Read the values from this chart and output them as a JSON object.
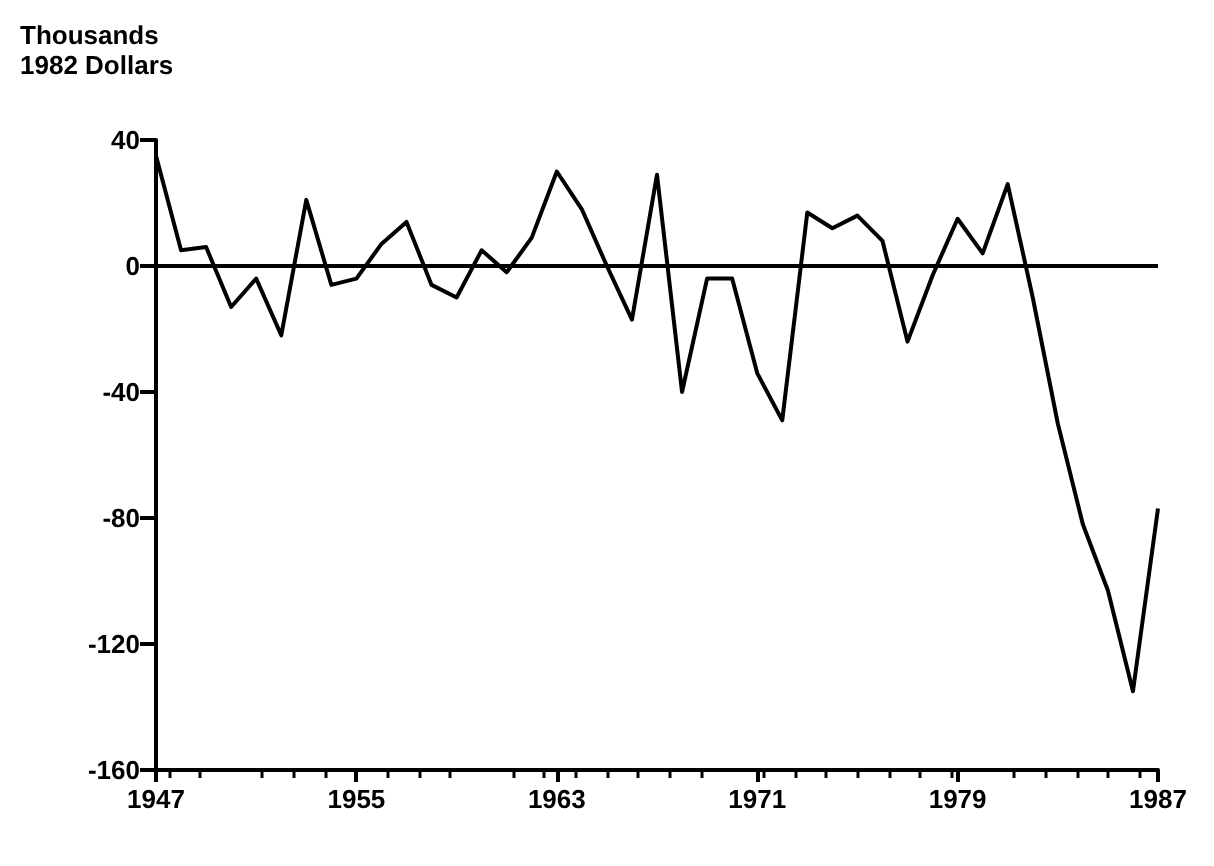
{
  "chart_data": {
    "type": "line",
    "ylabel": "Thousands\n1982 Dollars",
    "x": [
      1947,
      1948,
      1949,
      1950,
      1951,
      1952,
      1953,
      1954,
      1955,
      1956,
      1957,
      1958,
      1959,
      1960,
      1961,
      1962,
      1963,
      1964,
      1965,
      1966,
      1967,
      1968,
      1969,
      1970,
      1971,
      1972,
      1973,
      1974,
      1975,
      1976,
      1977,
      1978,
      1979,
      1980,
      1981,
      1982,
      1983,
      1984,
      1985,
      1986,
      1987
    ],
    "series": [
      {
        "color": "#000000",
        "values": [
          35,
          5,
          6,
          -13,
          -4,
          -22,
          21,
          -6,
          -4,
          7,
          14,
          -6,
          -10,
          5,
          -2,
          9,
          30,
          18,
          0,
          -17,
          29,
          -40,
          -4,
          -4,
          -34,
          -49,
          17,
          12,
          16,
          8,
          -24,
          -3,
          15,
          4,
          26,
          -10,
          -50,
          -82,
          -103,
          -135,
          -77
        ]
      }
    ],
    "xlim": [
      1947,
      1987
    ],
    "xticks": [
      1947,
      1955,
      1963,
      1971,
      1979,
      1987
    ],
    "ylim": [
      -160,
      40
    ],
    "yticks": [
      -160,
      -120,
      -80,
      -40,
      0,
      40
    ],
    "ref_lines": [
      {
        "axis": "y",
        "value": 0,
        "color": "#000000"
      }
    ],
    "grid": false,
    "marker": "none",
    "line_style": "solid"
  }
}
